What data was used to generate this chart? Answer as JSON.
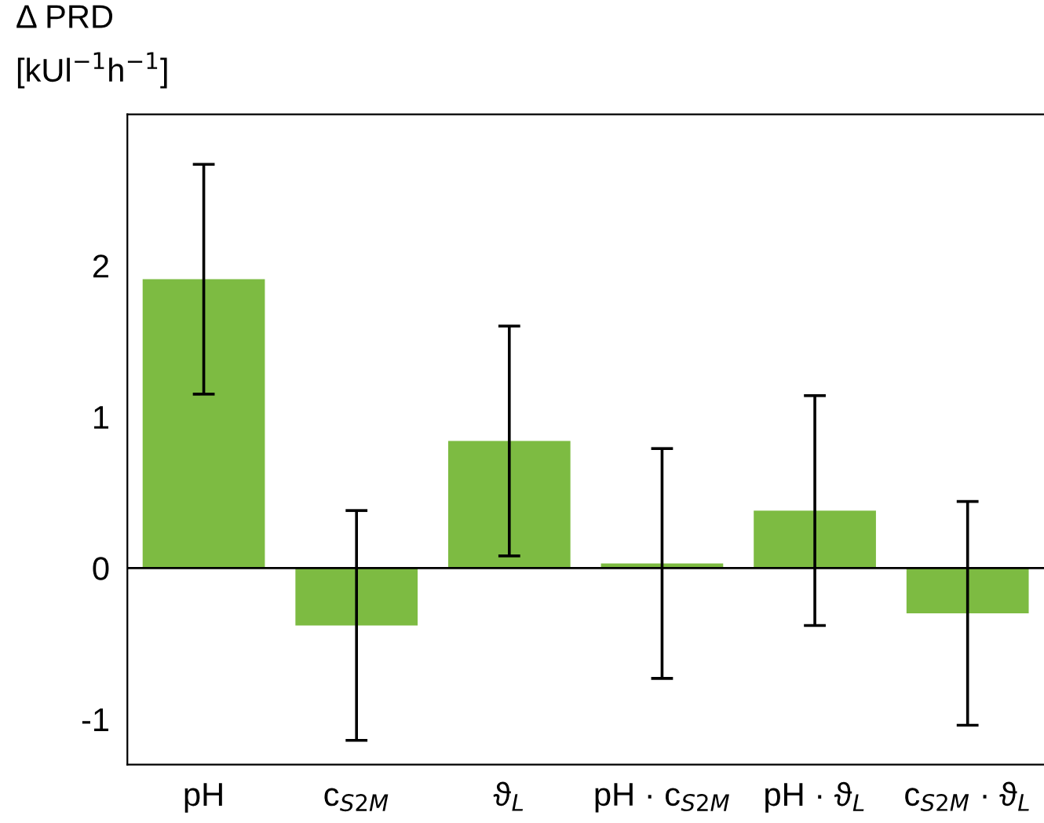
{
  "chart_data": {
    "type": "bar",
    "ylabel": "Δ PRD\n[kUl$^{−1}$h$^{−1}$]",
    "categories": [
      "pH",
      "c$_{S2M}$",
      "ϑ$_{L}$",
      "pH · c$_{S2M}$",
      "pH · ϑ$_{L}$",
      "c$_{S2M}$ · ϑ$_{L}$"
    ],
    "values": [
      1.91,
      -0.38,
      0.84,
      0.03,
      0.38,
      -0.3
    ],
    "errors": [
      0.76,
      0.76,
      0.76,
      0.76,
      0.76,
      0.74
    ],
    "color": "#7dbb42",
    "ylim": [
      -1.3,
      3.0
    ],
    "yticks": [
      -1,
      0,
      1,
      2
    ],
    "ref_lines": [
      {
        "axis": "y",
        "value": 0,
        "color": "#000000"
      }
    ],
    "grid": false
  }
}
